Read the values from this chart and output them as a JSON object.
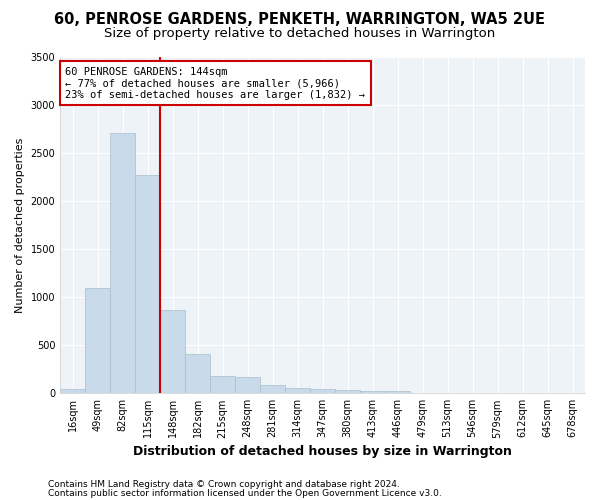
{
  "title": "60, PENROSE GARDENS, PENKETH, WARRINGTON, WA5 2UE",
  "subtitle": "Size of property relative to detached houses in Warrington",
  "xlabel": "Distribution of detached houses by size in Warrington",
  "ylabel": "Number of detached properties",
  "bar_color": "#c9daea",
  "bar_edge_color": "#aabdcc",
  "categories": [
    "16sqm",
    "49sqm",
    "82sqm",
    "115sqm",
    "148sqm",
    "182sqm",
    "215sqm",
    "248sqm",
    "281sqm",
    "314sqm",
    "347sqm",
    "380sqm",
    "413sqm",
    "446sqm",
    "479sqm",
    "513sqm",
    "546sqm",
    "579sqm",
    "612sqm",
    "645sqm",
    "678sqm"
  ],
  "values": [
    50,
    1090,
    2700,
    2270,
    870,
    410,
    175,
    165,
    90,
    60,
    50,
    35,
    25,
    20,
    0,
    0,
    0,
    0,
    0,
    0,
    0
  ],
  "ylim": [
    0,
    3500
  ],
  "yticks": [
    0,
    500,
    1000,
    1500,
    2000,
    2500,
    3000,
    3500
  ],
  "annotation_line1": "60 PENROSE GARDENS: 144sqm",
  "annotation_line2": "← 77% of detached houses are smaller (5,966)",
  "annotation_line3": "23% of semi-detached houses are larger (1,832) →",
  "annotation_box_color": "#ffffff",
  "annotation_box_edge_color": "#cc0000",
  "line_color": "#cc0000",
  "footer1": "Contains HM Land Registry data © Crown copyright and database right 2024.",
  "footer2": "Contains public sector information licensed under the Open Government Licence v3.0.",
  "bg_color": "#ffffff",
  "plot_bg_color": "#eef3f8",
  "grid_color": "#ffffff",
  "title_fontsize": 10.5,
  "subtitle_fontsize": 9.5,
  "xlabel_fontsize": 9,
  "ylabel_fontsize": 8,
  "tick_fontsize": 7,
  "annotation_fontsize": 7.5,
  "footer_fontsize": 6.5
}
